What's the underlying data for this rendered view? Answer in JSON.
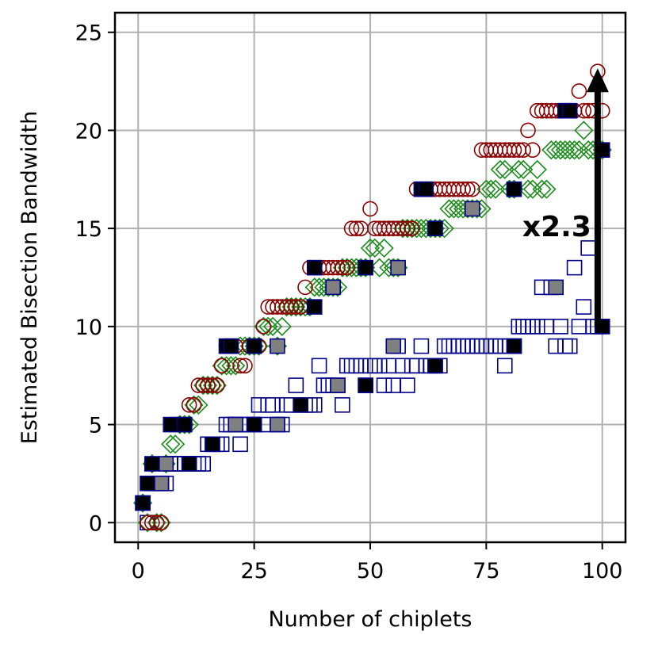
{
  "chart_data": {
    "type": "scatter",
    "xlabel": "Number of chiplets",
    "ylabel": "Estimated Bisection Bandwidth",
    "xlim": [
      -5,
      105
    ],
    "ylim": [
      -1,
      26
    ],
    "xticks": [
      0,
      25,
      50,
      75,
      100
    ],
    "yticks": [
      0,
      5,
      10,
      15,
      20,
      25
    ],
    "grid": true,
    "colors": {
      "circle": "#8b0000",
      "diamond": "#1a8c1a",
      "square": "#00008b",
      "filled_black": "#000000",
      "filled_gray": "#808080"
    },
    "series": [
      {
        "name": "circles",
        "marker": "circle",
        "points": [
          [
            1,
            1
          ],
          [
            2,
            0
          ],
          [
            3,
            0
          ],
          [
            4,
            0
          ],
          [
            5,
            0
          ],
          [
            6,
            3
          ],
          [
            7,
            5
          ],
          [
            8,
            5
          ],
          [
            9,
            5
          ],
          [
            10,
            5
          ],
          [
            11,
            6
          ],
          [
            12,
            6
          ],
          [
            13,
            7
          ],
          [
            14,
            7
          ],
          [
            15,
            7
          ],
          [
            16,
            7
          ],
          [
            17,
            7
          ],
          [
            18,
            8
          ],
          [
            19,
            9
          ],
          [
            20,
            9
          ],
          [
            21,
            9
          ],
          [
            22,
            8
          ],
          [
            23,
            8
          ],
          [
            24,
            9
          ],
          [
            25,
            9
          ],
          [
            26,
            9
          ],
          [
            27,
            10
          ],
          [
            28,
            11
          ],
          [
            29,
            11
          ],
          [
            30,
            11
          ],
          [
            31,
            11
          ],
          [
            32,
            11
          ],
          [
            33,
            11
          ],
          [
            34,
            11
          ],
          [
            35,
            11
          ],
          [
            36,
            12
          ],
          [
            37,
            13
          ],
          [
            38,
            13
          ],
          [
            39,
            13
          ],
          [
            40,
            13
          ],
          [
            41,
            13
          ],
          [
            42,
            13
          ],
          [
            43,
            13
          ],
          [
            44,
            13
          ],
          [
            45,
            13
          ],
          [
            46,
            15
          ],
          [
            47,
            15
          ],
          [
            48,
            15
          ],
          [
            49,
            13
          ],
          [
            50,
            16
          ],
          [
            51,
            15
          ],
          [
            52,
            15
          ],
          [
            53,
            15
          ],
          [
            54,
            15
          ],
          [
            55,
            15
          ],
          [
            56,
            15
          ],
          [
            57,
            15
          ],
          [
            58,
            15
          ],
          [
            59,
            15
          ],
          [
            60,
            17
          ],
          [
            61,
            17
          ],
          [
            62,
            17
          ],
          [
            63,
            17
          ],
          [
            64,
            17
          ],
          [
            65,
            17
          ],
          [
            66,
            17
          ],
          [
            67,
            17
          ],
          [
            68,
            17
          ],
          [
            69,
            17
          ],
          [
            70,
            17
          ],
          [
            71,
            17
          ],
          [
            72,
            17
          ],
          [
            74,
            19
          ],
          [
            75,
            19
          ],
          [
            76,
            19
          ],
          [
            77,
            19
          ],
          [
            78,
            19
          ],
          [
            79,
            19
          ],
          [
            80,
            19
          ],
          [
            81,
            19
          ],
          [
            82,
            19
          ],
          [
            83,
            19
          ],
          [
            84,
            20
          ],
          [
            85,
            19
          ],
          [
            86,
            21
          ],
          [
            87,
            21
          ],
          [
            88,
            21
          ],
          [
            89,
            21
          ],
          [
            90,
            21
          ],
          [
            91,
            21
          ],
          [
            92,
            21
          ],
          [
            93,
            21
          ],
          [
            94,
            21
          ],
          [
            95,
            22
          ],
          [
            96,
            21
          ],
          [
            97,
            21
          ],
          [
            98,
            21
          ],
          [
            99,
            23
          ],
          [
            100,
            21
          ]
        ]
      },
      {
        "name": "diamonds",
        "marker": "diamond",
        "points": [
          [
            1,
            1
          ],
          [
            2,
            0
          ],
          [
            3,
            3
          ],
          [
            4,
            0
          ],
          [
            5,
            0
          ],
          [
            6,
            3
          ],
          [
            7,
            4
          ],
          [
            8,
            4
          ],
          [
            9,
            5
          ],
          [
            10,
            5
          ],
          [
            11,
            5
          ],
          [
            12,
            6
          ],
          [
            13,
            6
          ],
          [
            14,
            7
          ],
          [
            15,
            7
          ],
          [
            16,
            7
          ],
          [
            17,
            7
          ],
          [
            18,
            8
          ],
          [
            19,
            8
          ],
          [
            20,
            8
          ],
          [
            21,
            8
          ],
          [
            22,
            9
          ],
          [
            23,
            9
          ],
          [
            24,
            9
          ],
          [
            25,
            9
          ],
          [
            26,
            9
          ],
          [
            27,
            10
          ],
          [
            28,
            10
          ],
          [
            29,
            10
          ],
          [
            30,
            9
          ],
          [
            31,
            10
          ],
          [
            32,
            11
          ],
          [
            33,
            11
          ],
          [
            34,
            11
          ],
          [
            35,
            11
          ],
          [
            36,
            11
          ],
          [
            37,
            11
          ],
          [
            38,
            12
          ],
          [
            39,
            12
          ],
          [
            40,
            12
          ],
          [
            41,
            12
          ],
          [
            42,
            12
          ],
          [
            43,
            12
          ],
          [
            44,
            13
          ],
          [
            45,
            13
          ],
          [
            46,
            13
          ],
          [
            47,
            13
          ],
          [
            48,
            13
          ],
          [
            49,
            13
          ],
          [
            50,
            14
          ],
          [
            51,
            14
          ],
          [
            52,
            13
          ],
          [
            53,
            14
          ],
          [
            54,
            13
          ],
          [
            55,
            13
          ],
          [
            56,
            13
          ],
          [
            57,
            15
          ],
          [
            58,
            15
          ],
          [
            59,
            15
          ],
          [
            60,
            15
          ],
          [
            61,
            15
          ],
          [
            62,
            15
          ],
          [
            63,
            15
          ],
          [
            64,
            15
          ],
          [
            65,
            15
          ],
          [
            66,
            15
          ],
          [
            67,
            16
          ],
          [
            68,
            16
          ],
          [
            69,
            16
          ],
          [
            70,
            16
          ],
          [
            71,
            16
          ],
          [
            72,
            16
          ],
          [
            73,
            16
          ],
          [
            74,
            16
          ],
          [
            75,
            17
          ],
          [
            76,
            17
          ],
          [
            77,
            17
          ],
          [
            78,
            18
          ],
          [
            79,
            18
          ],
          [
            80,
            17
          ],
          [
            81,
            17
          ],
          [
            82,
            18
          ],
          [
            83,
            18
          ],
          [
            84,
            17
          ],
          [
            85,
            17
          ],
          [
            86,
            18
          ],
          [
            87,
            17
          ],
          [
            88,
            17
          ],
          [
            89,
            19
          ],
          [
            90,
            19
          ],
          [
            91,
            19
          ],
          [
            92,
            19
          ],
          [
            93,
            19
          ],
          [
            94,
            19
          ],
          [
            95,
            19
          ],
          [
            96,
            20
          ],
          [
            97,
            19
          ],
          [
            98,
            19
          ],
          [
            99,
            19
          ],
          [
            100,
            19
          ]
        ]
      },
      {
        "name": "squares",
        "marker": "square",
        "points": [
          [
            1,
            1
          ],
          [
            2,
            0
          ],
          [
            3,
            2
          ],
          [
            4,
            2
          ],
          [
            5,
            2
          ],
          [
            6,
            2
          ],
          [
            7,
            3
          ],
          [
            8,
            3
          ],
          [
            9,
            3
          ],
          [
            10,
            3
          ],
          [
            11,
            3
          ],
          [
            12,
            3
          ],
          [
            13,
            3
          ],
          [
            14,
            3
          ],
          [
            15,
            4
          ],
          [
            16,
            4
          ],
          [
            17,
            4
          ],
          [
            18,
            4
          ],
          [
            19,
            5
          ],
          [
            20,
            5
          ],
          [
            21,
            5
          ],
          [
            22,
            4
          ],
          [
            23,
            5
          ],
          [
            24,
            5
          ],
          [
            25,
            5
          ],
          [
            26,
            6
          ],
          [
            27,
            5
          ],
          [
            28,
            6
          ],
          [
            29,
            6
          ],
          [
            30,
            5
          ],
          [
            31,
            5
          ],
          [
            32,
            6
          ],
          [
            33,
            6
          ],
          [
            34,
            7
          ],
          [
            35,
            6
          ],
          [
            36,
            6
          ],
          [
            37,
            6
          ],
          [
            38,
            6
          ],
          [
            39,
            8
          ],
          [
            40,
            7
          ],
          [
            41,
            7
          ],
          [
            42,
            7
          ],
          [
            43,
            7
          ],
          [
            44,
            6
          ],
          [
            45,
            8
          ],
          [
            46,
            8
          ],
          [
            47,
            8
          ],
          [
            48,
            8
          ],
          [
            49,
            7
          ],
          [
            50,
            8
          ],
          [
            51,
            8
          ],
          [
            52,
            8
          ],
          [
            53,
            7
          ],
          [
            54,
            8
          ],
          [
            55,
            7
          ],
          [
            56,
            9
          ],
          [
            57,
            8
          ],
          [
            58,
            7
          ],
          [
            59,
            8
          ],
          [
            60,
            8
          ],
          [
            61,
            9
          ],
          [
            62,
            8
          ],
          [
            63,
            8
          ],
          [
            64,
            8
          ],
          [
            65,
            8
          ],
          [
            66,
            9
          ],
          [
            67,
            9
          ],
          [
            68,
            9
          ],
          [
            69,
            9
          ],
          [
            70,
            9
          ],
          [
            71,
            9
          ],
          [
            72,
            9
          ],
          [
            73,
            9
          ],
          [
            74,
            9
          ],
          [
            75,
            9
          ],
          [
            76,
            9
          ],
          [
            77,
            9
          ],
          [
            78,
            9
          ],
          [
            79,
            8
          ],
          [
            80,
            9
          ],
          [
            81,
            9
          ],
          [
            82,
            10
          ],
          [
            83,
            10
          ],
          [
            84,
            10
          ],
          [
            85,
            10
          ],
          [
            86,
            10
          ],
          [
            87,
            12
          ],
          [
            88,
            10
          ],
          [
            89,
            12
          ],
          [
            90,
            9
          ],
          [
            91,
            10
          ],
          [
            92,
            9
          ],
          [
            93,
            9
          ],
          [
            94,
            13
          ],
          [
            95,
            10
          ],
          [
            96,
            11
          ],
          [
            97,
            14
          ],
          [
            98,
            10
          ],
          [
            99,
            10
          ],
          [
            100,
            10
          ]
        ]
      }
    ],
    "filled_black": [
      [
        1,
        1
      ],
      [
        2,
        2
      ],
      [
        3,
        3
      ],
      [
        7,
        5
      ],
      [
        10,
        5
      ],
      [
        11,
        3
      ],
      [
        16,
        4
      ],
      [
        19,
        9
      ],
      [
        20,
        9
      ],
      [
        25,
        5
      ],
      [
        25,
        9
      ],
      [
        35,
        6
      ],
      [
        38,
        11
      ],
      [
        38,
        13
      ],
      [
        49,
        7
      ],
      [
        49,
        13
      ],
      [
        61,
        17
      ],
      [
        62,
        17
      ],
      [
        64,
        8
      ],
      [
        64,
        15
      ],
      [
        81,
        9
      ],
      [
        81,
        17
      ],
      [
        92,
        21
      ],
      [
        93,
        21
      ],
      [
        100,
        10
      ],
      [
        100,
        19
      ]
    ],
    "filled_gray": [
      [
        5,
        2
      ],
      [
        6,
        3
      ],
      [
        21,
        5
      ],
      [
        30,
        9
      ],
      [
        30,
        5
      ],
      [
        42,
        12
      ],
      [
        43,
        7
      ],
      [
        55,
        9
      ],
      [
        56,
        13
      ],
      [
        72,
        16
      ],
      [
        90,
        12
      ]
    ],
    "annotation": {
      "text": "x2.3",
      "from": [
        99,
        10
      ],
      "to": [
        99,
        23
      ]
    }
  }
}
